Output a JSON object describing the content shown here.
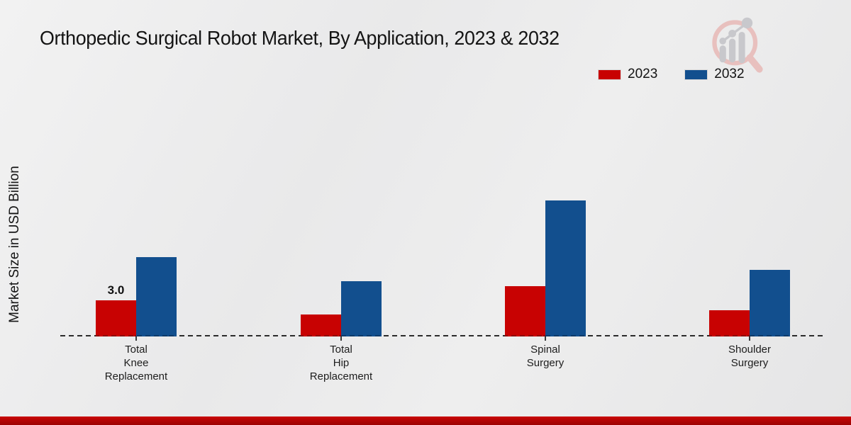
{
  "title": "Orthopedic Surgical Robot Market, By Application, 2023 & 2032",
  "ylabel": "Market Size in USD Billion",
  "colors": {
    "series_2023": "#c80202",
    "series_2023_dark": "#8e0000",
    "series_2032": "#124f8e",
    "series_2032_dark": "#0d3a69",
    "footer_bar": "#b30404",
    "axis_dash": "#2b2b2b"
  },
  "chart_data": {
    "type": "bar",
    "title": "Orthopedic Surgical Robot Market, By Application, 2023 & 2032",
    "xlabel": "",
    "ylabel": "Market Size in USD Billion",
    "unit": "USD Billion",
    "categories": [
      [
        "Total",
        "Knee",
        "Replacement"
      ],
      [
        "Total",
        "Hip",
        "Replacement"
      ],
      [
        "Spinal",
        "Surgery"
      ],
      [
        "Shoulder",
        "Surgery"
      ]
    ],
    "series": [
      {
        "name": "2023",
        "color": "#c80202",
        "dark_color": "#8e0000",
        "values": [
          3.0,
          1.8,
          4.2,
          2.2
        ]
      },
      {
        "name": "2032",
        "color": "#124f8e",
        "dark_color": "#0d3a69",
        "values": [
          6.6,
          4.6,
          11.3,
          5.5
        ]
      }
    ],
    "value_labels": [
      {
        "series_index": 0,
        "category_index": 0,
        "text": "3.0"
      }
    ],
    "legend_position": "top-right",
    "baseline_style": "dashed",
    "grid": false,
    "ylim": [
      0,
      12
    ]
  }
}
